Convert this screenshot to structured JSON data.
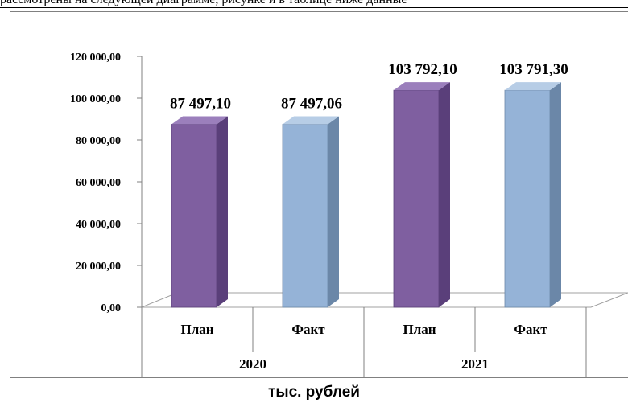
{
  "header_text": "рассмотрены на следующей диаграмме, рисунке и в таблице ниже данные",
  "caption": "тыс. рублей",
  "chart_data": {
    "type": "bar",
    "categories": [
      "План",
      "Факт",
      "План",
      "Факт"
    ],
    "groups": [
      {
        "label": "2020",
        "span": [
          0,
          1
        ]
      },
      {
        "label": "2021",
        "span": [
          2,
          3
        ]
      }
    ],
    "values": [
      87497.1,
      87497.06,
      103792.1,
      103791.3
    ],
    "value_labels": [
      "87 497,10",
      "87 497,06",
      "103 792,10",
      "103 791,30"
    ],
    "colors": [
      "#7f5fa0",
      "#95b3d7",
      "#7f5fa0",
      "#95b3d7"
    ],
    "ylim": [
      0,
      120000
    ],
    "yticks": [
      0,
      20000,
      40000,
      60000,
      80000,
      100000,
      120000
    ],
    "ytick_labels": [
      "0,00",
      "20 000,00",
      "40 000,00",
      "60 000,00",
      "80 000,00",
      "100 000,00",
      "120 000,00"
    ],
    "title": "",
    "xlabel": "",
    "ylabel": "",
    "grid": false,
    "legend": "none"
  }
}
